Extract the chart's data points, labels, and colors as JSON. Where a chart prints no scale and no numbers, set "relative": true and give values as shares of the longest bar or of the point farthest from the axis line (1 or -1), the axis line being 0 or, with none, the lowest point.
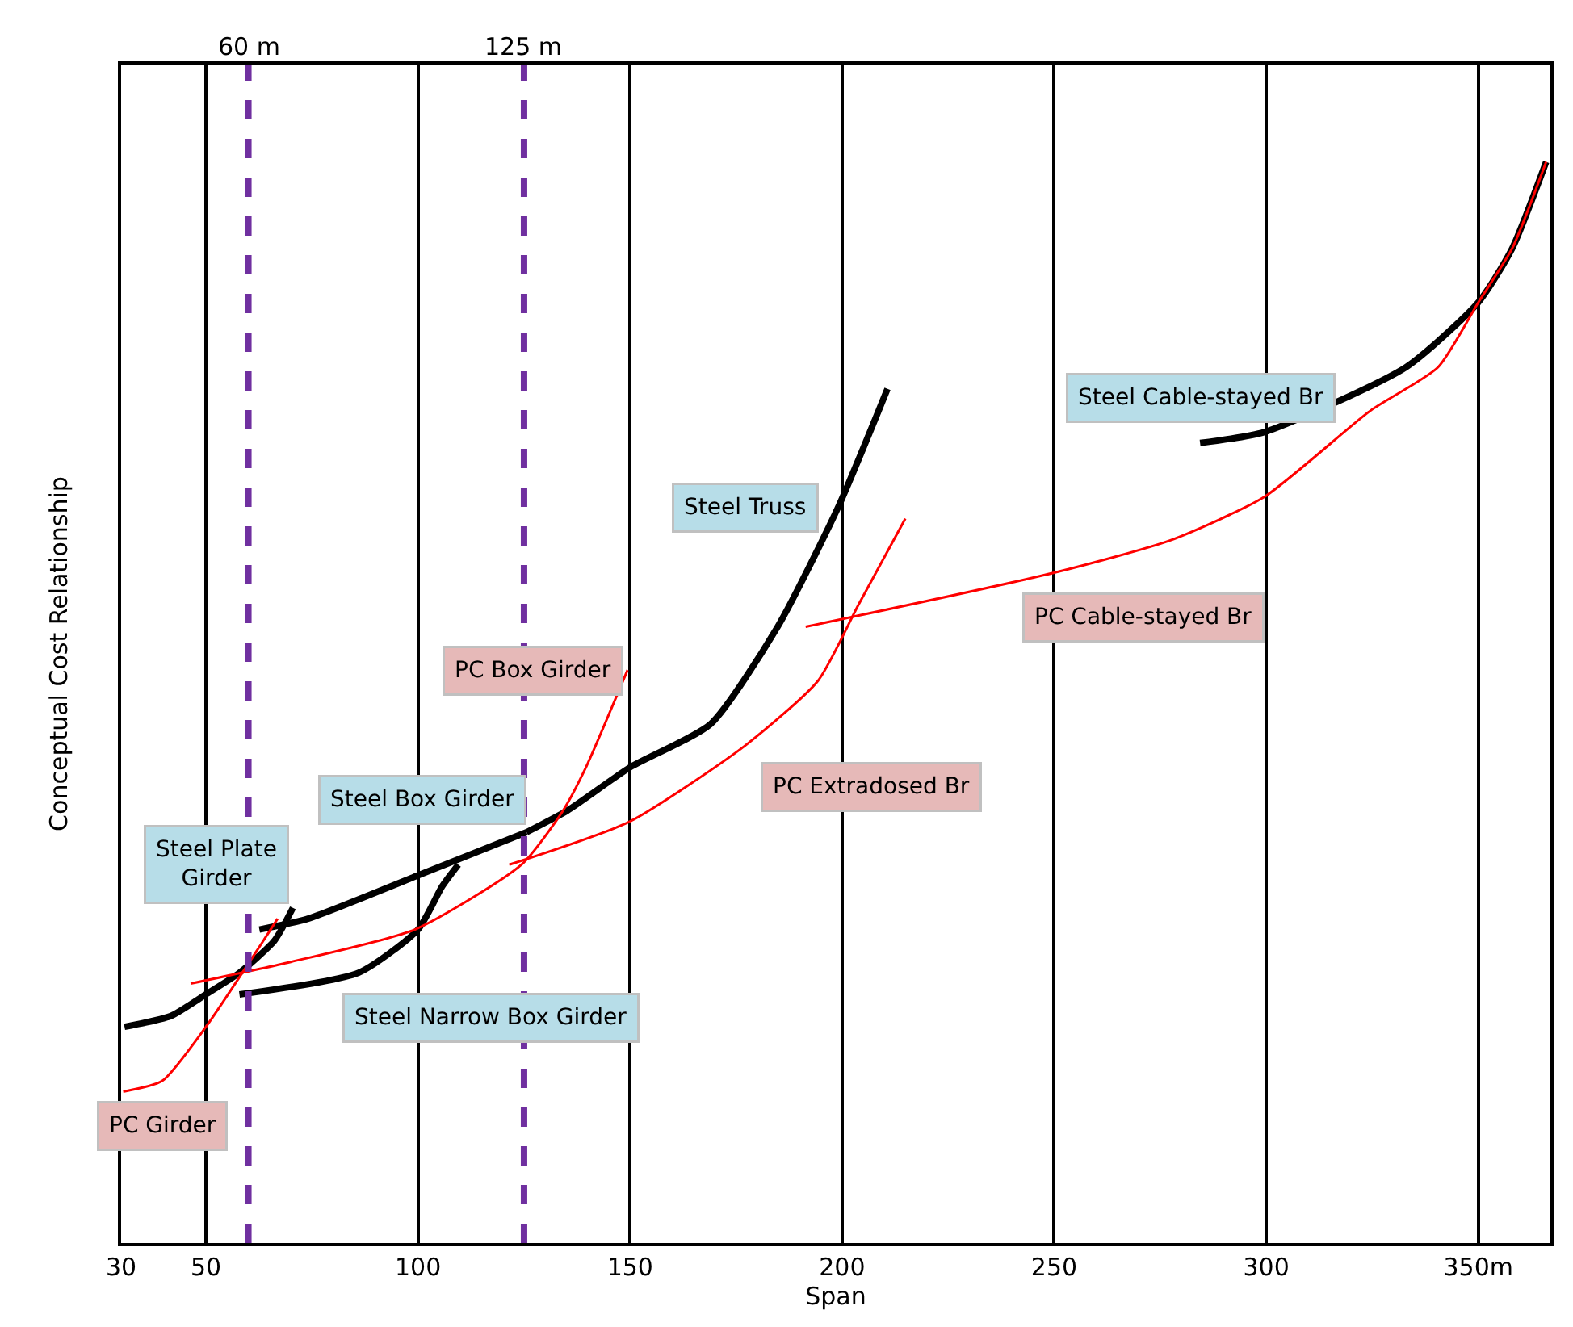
{
  "chart_data": {
    "type": "line",
    "relative": true,
    "xlabel": "Span",
    "ylabel": "Conceptual Cost Relationship",
    "xlim": [
      30,
      367
    ],
    "xticks": [
      30,
      50,
      100,
      150,
      200,
      250,
      300,
      {
        "value": 350,
        "label": "350m"
      }
    ],
    "grid": "x",
    "legend": false,
    "marker": "none",
    "line_style": "solid",
    "ref_lines": [
      {
        "axis": "x",
        "value": 60,
        "label": "60 m",
        "color": "#7030a0",
        "line_style": "dashed"
      },
      {
        "axis": "x",
        "value": 125,
        "label": "125 m",
        "color": "#7030a0",
        "line_style": "dashed"
      }
    ],
    "series": [
      {
        "name": "Steel Plate Girder",
        "color": "#000000",
        "x": [
          30.8,
          41.7,
          50,
          57.9,
          66.2,
          70.5
        ],
        "values": [
          0.2,
          0.21,
          0.23,
          0.25,
          0.28,
          0.31
        ]
      },
      {
        "name": "Steel Narrow Box Girder",
        "color": "#000000",
        "x": [
          57.9,
          86,
          100,
          105.7,
          109.5
        ],
        "values": [
          0.23,
          0.25,
          0.29,
          0.33,
          0.35
        ]
      },
      {
        "name": "Steel Box Girder",
        "color": "#000000",
        "x": [
          62.6,
          74.1,
          100,
          125.6
        ],
        "values": [
          0.29,
          0.3,
          0.34,
          0.38
        ]
      },
      {
        "name": "Steel Truss",
        "color": "#000000",
        "x": [
          125.6,
          135.2,
          150,
          169,
          184.8,
          199,
          210.7
        ],
        "values": [
          0.38,
          0.4,
          0.44,
          0.48,
          0.57,
          0.68,
          0.79
        ]
      },
      {
        "name": "Steel Cable-stayed Br",
        "color": "#000000",
        "x": [
          284.4,
          299.5,
          332.9,
          350,
          358,
          366
        ],
        "values": [
          0.74,
          0.75,
          0.81,
          0.87,
          0.92,
          1
        ]
      },
      {
        "name": "PC Girder",
        "color": "#ff0000",
        "x": [
          30.5,
          39.7,
          50,
          63.6,
          66.9
        ],
        "values": [
          0.14,
          0.15,
          0.2,
          0.28,
          0.3
        ]
      },
      {
        "name": "PC Box Girder",
        "color": "#ff0000",
        "x": [
          46.4,
          70,
          99.3,
          124.4,
          134.2,
          139.6,
          149.4
        ],
        "values": [
          0.24,
          0.26,
          0.29,
          0.35,
          0.4,
          0.44,
          0.53
        ]
      },
      {
        "name": "PC Extradosed Br",
        "color": "#ff0000",
        "x": [
          121.5,
          150,
          177.1,
          194.3,
          203.8,
          214.9
        ],
        "values": [
          0.35,
          0.39,
          0.46,
          0.52,
          0.59,
          0.67
        ]
      },
      {
        "name": "PC Cable-stayed Br",
        "color": "#ff0000",
        "x": [
          191.4,
          250,
          277.4,
          299.5,
          324.6,
          340.5,
          350,
          358,
          366
        ],
        "values": [
          0.57,
          0.62,
          0.65,
          0.69,
          0.77,
          0.81,
          0.87,
          0.92,
          1
        ]
      }
    ]
  }
}
